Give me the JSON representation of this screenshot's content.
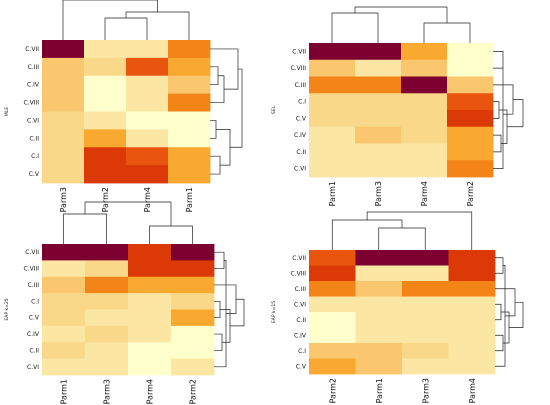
{
  "palette": [
    "#FFFFCC",
    "#FBE6A4",
    "#F9D889",
    "#FAC66E",
    "#F9A92F",
    "#F28418",
    "#E9550E",
    "#DB3A07",
    "#7C0030"
  ],
  "chart_data": [
    {
      "type": "heatmap",
      "side_label": "MLE",
      "rows": [
        "C.VII",
        "C.III",
        "C.IV",
        "C.VIII",
        "C.VI",
        "C.II",
        "C.I",
        "C.V"
      ],
      "cols": [
        "Parm3",
        "Parm2",
        "Parm4",
        "Parm1"
      ],
      "values": [
        [
          8,
          1,
          1,
          5
        ],
        [
          3,
          2,
          6,
          4
        ],
        [
          3,
          0,
          1,
          3
        ],
        [
          3,
          0,
          1,
          5
        ],
        [
          2,
          1,
          0,
          0
        ],
        [
          2,
          4,
          1,
          0
        ],
        [
          2,
          7,
          6,
          4
        ],
        [
          2,
          7,
          7,
          4
        ]
      ]
    },
    {
      "type": "heatmap",
      "side_label": "SEL",
      "rows": [
        "C.VII",
        "C.VIII",
        "C.III",
        "C.I",
        "C.V",
        "C.IV",
        "C.II",
        "C.VI"
      ],
      "cols": [
        "Parm1",
        "Parm3",
        "Parm4",
        "Parm2"
      ],
      "values": [
        [
          8,
          8,
          4,
          0
        ],
        [
          3,
          1,
          3,
          0
        ],
        [
          5,
          5,
          8,
          3
        ],
        [
          2,
          2,
          2,
          6
        ],
        [
          2,
          2,
          2,
          7
        ],
        [
          1,
          3,
          2,
          4
        ],
        [
          1,
          1,
          1,
          4
        ],
        [
          1,
          1,
          1,
          5
        ]
      ]
    },
    {
      "type": "heatmap",
      "side_label": "EAP k=25",
      "rows": [
        "C.VII",
        "C.VIII",
        "C.III",
        "C.I",
        "C.V",
        "C.IV",
        "C.II",
        "C.VI"
      ],
      "cols": [
        "Parm1",
        "Parm3",
        "Parm4",
        "Parm2"
      ],
      "values": [
        [
          8,
          8,
          7,
          8
        ],
        [
          1,
          2,
          7,
          7
        ],
        [
          3,
          5,
          4,
          4
        ],
        [
          2,
          2,
          1,
          2
        ],
        [
          2,
          1,
          1,
          4
        ],
        [
          1,
          2,
          1,
          0
        ],
        [
          2,
          1,
          0,
          0
        ],
        [
          1,
          1,
          0,
          1
        ]
      ]
    },
    {
      "type": "heatmap",
      "side_label": "EAP k=15",
      "rows": [
        "C.VII",
        "C.VIII",
        "C.III",
        "C.VI",
        "C.II",
        "C.IV",
        "C.I",
        "C.V"
      ],
      "cols": [
        "Parm2",
        "Parm1",
        "Parm3",
        "Parm4"
      ],
      "values": [
        [
          6,
          8,
          8,
          7
        ],
        [
          7,
          1,
          1,
          7
        ],
        [
          5,
          3,
          5,
          5
        ],
        [
          1,
          1,
          1,
          1
        ],
        [
          0,
          1,
          1,
          1
        ],
        [
          0,
          1,
          1,
          1
        ],
        [
          3,
          3,
          2,
          1
        ],
        [
          4,
          3,
          1,
          1
        ]
      ]
    }
  ]
}
